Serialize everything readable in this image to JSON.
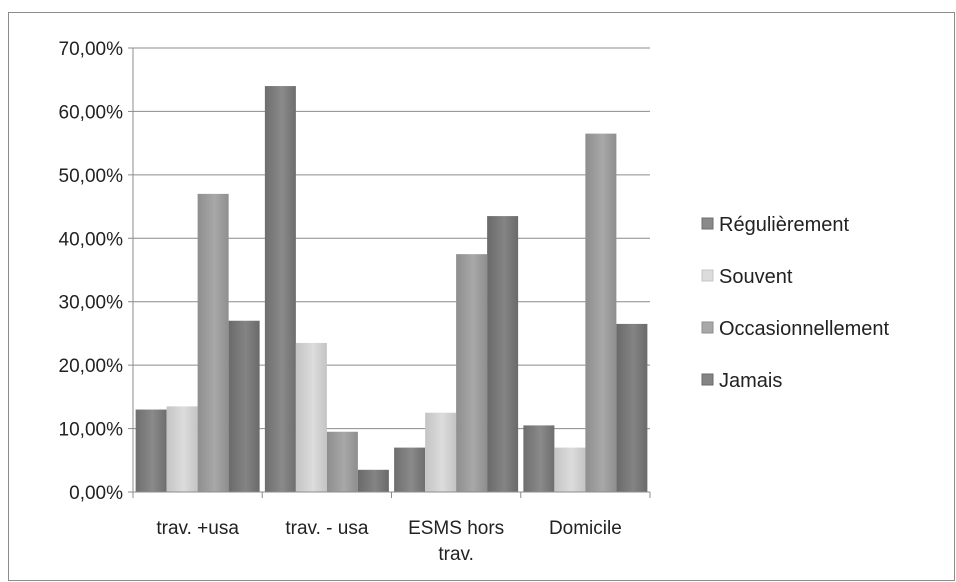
{
  "chart_data": {
    "type": "bar",
    "categories": [
      [
        "trav. +usa"
      ],
      [
        "trav. - usa"
      ],
      [
        "ESMS hors",
        "trav."
      ],
      [
        "Domicile"
      ]
    ],
    "series": [
      {
        "name": "Régulièrement",
        "values": [
          0.13,
          0.64,
          0.07,
          0.105
        ]
      },
      {
        "name": "Souvent",
        "values": [
          0.135,
          0.235,
          0.125,
          0.07
        ]
      },
      {
        "name": "Occasionnellement",
        "values": [
          0.47,
          0.095,
          0.375,
          0.565
        ]
      },
      {
        "name": "Jamais",
        "values": [
          0.27,
          0.035,
          0.435,
          0.265
        ]
      }
    ],
    "ylim": [
      0,
      0.7
    ],
    "ytick_labels": [
      "0,00%",
      "10,00%",
      "20,00%",
      "30,00%",
      "40,00%",
      "50,00%",
      "60,00%",
      "70,00%"
    ],
    "grid": true,
    "legend": "right",
    "colors": {
      "Régulièrement": [
        "#6e6e6e",
        "#8a8a8a"
      ],
      "Souvent": [
        "#c4c4c4",
        "#dcdcdc"
      ],
      "Occasionnellement": [
        "#8e8e8e",
        "#a8a8a8"
      ],
      "Jamais": [
        "#6a6a6a",
        "#848484"
      ]
    }
  }
}
